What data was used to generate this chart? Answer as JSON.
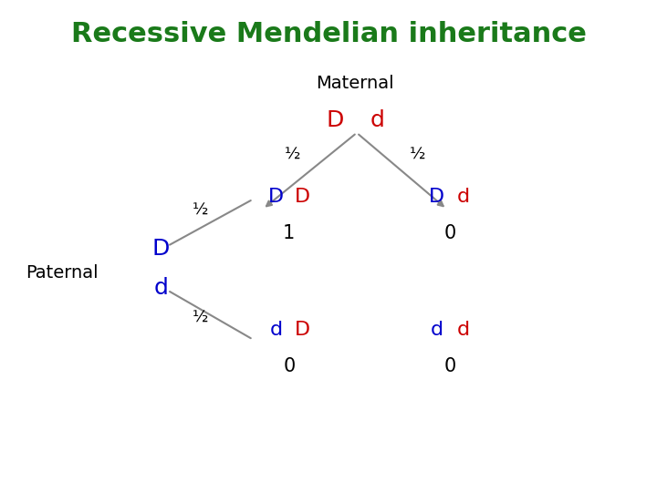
{
  "title": "Recessive Mendelian inheritance",
  "title_color": "#1a7a1a",
  "title_fontsize": 22,
  "bg_color": "#ffffff",
  "maternal_label": "Maternal",
  "paternal_label": "Paternal",
  "label_fontsize": 14,
  "label_color": "#000000",
  "mat_allele_color": "#cc0000",
  "pat_allele_color": "#0000cc",
  "res_pat_color": "#0000cc",
  "res_mat_color": "#cc0000",
  "allele_fontsize": 18,
  "prob_fontsize": 13,
  "result_fontsize": 16,
  "number_fontsize": 15,
  "arrow_color": "#888888"
}
